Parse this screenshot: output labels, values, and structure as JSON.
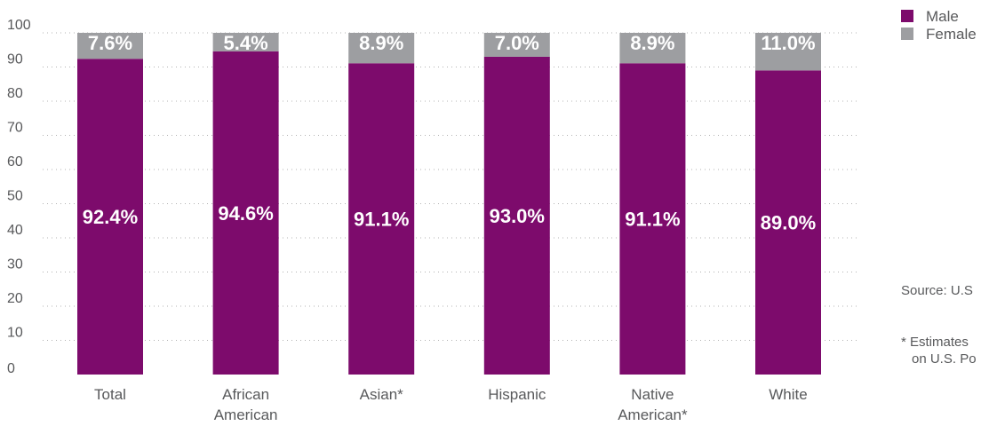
{
  "chart_data": {
    "type": "bar",
    "stacked": true,
    "categories": [
      [
        "Total"
      ],
      [
        "African",
        "American"
      ],
      [
        "Asian*"
      ],
      [
        "Hispanic"
      ],
      [
        "Native",
        "American*"
      ],
      [
        "White"
      ]
    ],
    "series": [
      {
        "name": "Male",
        "color": "#7d0b6c",
        "values": [
          92.4,
          94.6,
          91.1,
          93.0,
          91.1,
          89.0
        ],
        "labels": [
          "92.4%",
          "94.6%",
          "91.1%",
          "93.0%",
          "91.1%",
          "89.0%"
        ]
      },
      {
        "name": "Female",
        "color": "#9d9ea1",
        "values": [
          7.6,
          5.4,
          8.9,
          7.0,
          8.9,
          11.0
        ],
        "labels": [
          "7.6%",
          "5.4%",
          "8.9%",
          "7.0%",
          "8.9%",
          "11.0%"
        ]
      }
    ],
    "y_ticks": [
      0,
      10,
      20,
      30,
      40,
      50,
      60,
      70,
      80,
      90,
      100
    ],
    "ylim": [
      0,
      100
    ],
    "grid": true,
    "legend_position": "top-right"
  },
  "notes": {
    "source": "Source: U.S",
    "footnote_line1": "* Estimates",
    "footnote_line2": "on U.S. Po"
  }
}
